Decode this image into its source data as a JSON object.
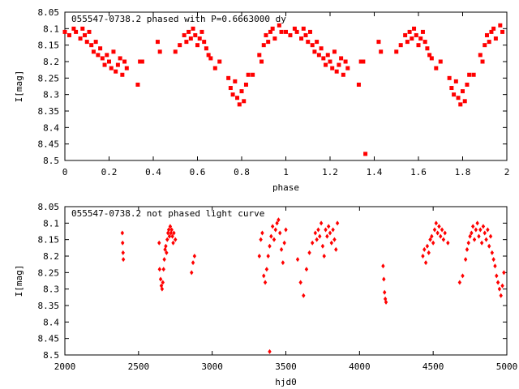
{
  "chart_data": [
    {
      "type": "scatter",
      "title": "055547-0738.2 phased with P=0.6663000 dy",
      "xlabel": "phase",
      "ylabel": "I[mag]",
      "xlim": [
        0,
        2
      ],
      "ylim": [
        8.05,
        8.5
      ],
      "y_inverted": true,
      "xticks": [
        "0",
        "0.2",
        "0.4",
        "0.6",
        "0.8",
        "1",
        "1.2",
        "1.4",
        "1.6",
        "1.8",
        "2"
      ],
      "yticks": [
        "8.05",
        "8.1",
        "8.15",
        "8.2",
        "8.25",
        "8.3",
        "8.35",
        "8.4",
        "8.45",
        "8.5"
      ],
      "marker": "square",
      "color": "#ff0000",
      "series": [
        {
          "x": [
            0.0,
            0.02,
            0.04,
            0.05,
            0.07,
            0.08,
            0.09,
            0.1,
            0.11,
            0.12,
            0.13,
            0.14,
            0.15,
            0.16,
            0.17,
            0.18,
            0.19,
            0.2,
            0.21,
            0.22,
            0.23,
            0.24,
            0.25,
            0.26,
            0.27,
            0.28,
            0.33,
            0.34,
            0.35,
            0.42,
            0.43,
            0.5,
            0.52,
            0.54,
            0.55,
            0.56,
            0.57,
            0.58,
            0.59,
            0.6,
            0.61,
            0.62,
            0.63,
            0.64,
            0.65,
            0.66,
            0.68,
            0.7,
            0.74,
            0.75,
            0.76,
            0.77,
            0.78,
            0.79,
            0.8,
            0.81,
            0.82,
            0.83,
            0.85,
            0.88,
            0.89,
            0.9,
            0.91,
            0.92,
            0.93,
            0.94,
            0.95,
            0.97,
            0.98,
            1.0,
            1.02,
            1.04,
            1.05,
            1.07,
            1.08,
            1.09,
            1.1,
            1.11,
            1.12,
            1.13,
            1.14,
            1.15,
            1.16,
            1.17,
            1.18,
            1.19,
            1.2,
            1.21,
            1.22,
            1.23,
            1.24,
            1.25,
            1.26,
            1.27,
            1.28,
            1.33,
            1.34,
            1.35,
            1.42,
            1.43,
            1.5,
            1.52,
            1.54,
            1.55,
            1.56,
            1.57,
            1.58,
            1.59,
            1.6,
            1.61,
            1.62,
            1.63,
            1.64,
            1.65,
            1.66,
            1.68,
            1.7,
            1.74,
            1.75,
            1.76,
            1.77,
            1.78,
            1.79,
            1.8,
            1.81,
            1.82,
            1.83,
            1.85,
            1.88,
            1.89,
            1.9,
            1.91,
            1.92,
            1.93,
            1.94,
            1.95,
            1.97,
            1.98,
            1.36
          ],
          "y": [
            8.11,
            8.12,
            8.1,
            8.11,
            8.13,
            8.1,
            8.12,
            8.14,
            8.11,
            8.15,
            8.17,
            8.14,
            8.18,
            8.16,
            8.19,
            8.21,
            8.18,
            8.2,
            8.22,
            8.17,
            8.23,
            8.21,
            8.19,
            8.24,
            8.2,
            8.22,
            8.27,
            8.2,
            8.2,
            8.14,
            8.17,
            8.17,
            8.15,
            8.12,
            8.14,
            8.11,
            8.13,
            8.1,
            8.12,
            8.15,
            8.13,
            8.11,
            8.14,
            8.16,
            8.18,
            8.19,
            8.22,
            8.2,
            8.25,
            8.28,
            8.3,
            8.26,
            8.31,
            8.33,
            8.29,
            8.32,
            8.27,
            8.24,
            8.24,
            8.18,
            8.2,
            8.15,
            8.12,
            8.14,
            8.11,
            8.1,
            8.13,
            8.09,
            8.11,
            8.11,
            8.12,
            8.1,
            8.11,
            8.13,
            8.1,
            8.12,
            8.14,
            8.11,
            8.15,
            8.17,
            8.14,
            8.18,
            8.16,
            8.19,
            8.21,
            8.18,
            8.2,
            8.22,
            8.17,
            8.23,
            8.21,
            8.19,
            8.24,
            8.2,
            8.22,
            8.27,
            8.2,
            8.2,
            8.14,
            8.17,
            8.17,
            8.15,
            8.12,
            8.14,
            8.11,
            8.13,
            8.1,
            8.12,
            8.15,
            8.13,
            8.11,
            8.14,
            8.16,
            8.18,
            8.19,
            8.22,
            8.2,
            8.25,
            8.28,
            8.3,
            8.26,
            8.31,
            8.33,
            8.29,
            8.32,
            8.27,
            8.24,
            8.24,
            8.18,
            8.2,
            8.15,
            8.12,
            8.14,
            8.11,
            8.1,
            8.13,
            8.09,
            8.11,
            8.48
          ]
        }
      ]
    },
    {
      "type": "scatter",
      "title": "055547-0738.2 not phased light curve",
      "xlabel": "hjd0",
      "ylabel": "I[mag]",
      "xlim": [
        2000,
        5000
      ],
      "ylim": [
        8.05,
        8.5
      ],
      "y_inverted": true,
      "xticks": [
        "2000",
        "2500",
        "3000",
        "3500",
        "4000",
        "4500",
        "5000"
      ],
      "yticks": [
        "8.05",
        "8.1",
        "8.15",
        "8.2",
        "8.25",
        "8.3",
        "8.35",
        "8.4",
        "8.45",
        "8.5"
      ],
      "marker": "diamond",
      "color": "#ff0000",
      "series": [
        {
          "x": [
            2390,
            2392,
            2395,
            2397,
            2640,
            2643,
            2650,
            2655,
            2660,
            2665,
            2670,
            2675,
            2680,
            2685,
            2690,
            2695,
            2700,
            2705,
            2710,
            2715,
            2720,
            2725,
            2730,
            2735,
            2740,
            2750,
            2860,
            2870,
            2880,
            3320,
            3330,
            3340,
            3350,
            3360,
            3370,
            3380,
            3390,
            3400,
            3410,
            3420,
            3430,
            3440,
            3450,
            3460,
            3470,
            3480,
            3490,
            3500,
            3580,
            3600,
            3620,
            3640,
            3660,
            3680,
            3700,
            3710,
            3720,
            3730,
            3740,
            3750,
            3760,
            3770,
            3780,
            3790,
            3800,
            3810,
            3820,
            3830,
            3840,
            3850,
            4160,
            4165,
            4170,
            4175,
            4180,
            4430,
            4440,
            4450,
            4460,
            4470,
            4480,
            4490,
            4500,
            4510,
            4520,
            4530,
            4540,
            4550,
            4560,
            4570,
            4580,
            4600,
            4680,
            4700,
            4720,
            4730,
            4740,
            4750,
            4760,
            4770,
            4780,
            4790,
            4800,
            4810,
            4820,
            4830,
            4840,
            4850,
            4860,
            4870,
            4880,
            4890,
            4900,
            4910,
            4920,
            4930,
            4940,
            4950,
            4960,
            4970,
            4980,
            3390
          ],
          "y": [
            8.13,
            8.16,
            8.19,
            8.21,
            8.16,
            8.24,
            8.27,
            8.29,
            8.3,
            8.28,
            8.24,
            8.21,
            8.18,
            8.17,
            8.19,
            8.15,
            8.13,
            8.12,
            8.14,
            8.11,
            8.13,
            8.12,
            8.14,
            8.16,
            8.13,
            8.15,
            8.25,
            8.22,
            8.2,
            8.2,
            8.15,
            8.13,
            8.26,
            8.28,
            8.24,
            8.2,
            8.17,
            8.14,
            8.11,
            8.15,
            8.12,
            8.1,
            8.09,
            8.13,
            8.18,
            8.22,
            8.16,
            8.12,
            8.21,
            8.28,
            8.32,
            8.24,
            8.19,
            8.16,
            8.13,
            8.15,
            8.12,
            8.14,
            8.1,
            8.17,
            8.2,
            8.12,
            8.14,
            8.11,
            8.13,
            8.16,
            8.12,
            8.15,
            8.18,
            8.1,
            8.23,
            8.27,
            8.31,
            8.33,
            8.34,
            8.2,
            8.18,
            8.22,
            8.17,
            8.19,
            8.15,
            8.14,
            8.16,
            8.12,
            8.1,
            8.13,
            8.11,
            8.14,
            8.12,
            8.15,
            8.13,
            8.16,
            8.28,
            8.26,
            8.21,
            8.18,
            8.16,
            8.14,
            8.13,
            8.11,
            8.15,
            8.12,
            8.1,
            8.14,
            8.12,
            8.16,
            8.11,
            8.13,
            8.15,
            8.12,
            8.17,
            8.14,
            8.19,
            8.21,
            8.23,
            8.26,
            8.28,
            8.3,
            8.32,
            8.29,
            8.25,
            8.49
          ]
        }
      ]
    }
  ]
}
